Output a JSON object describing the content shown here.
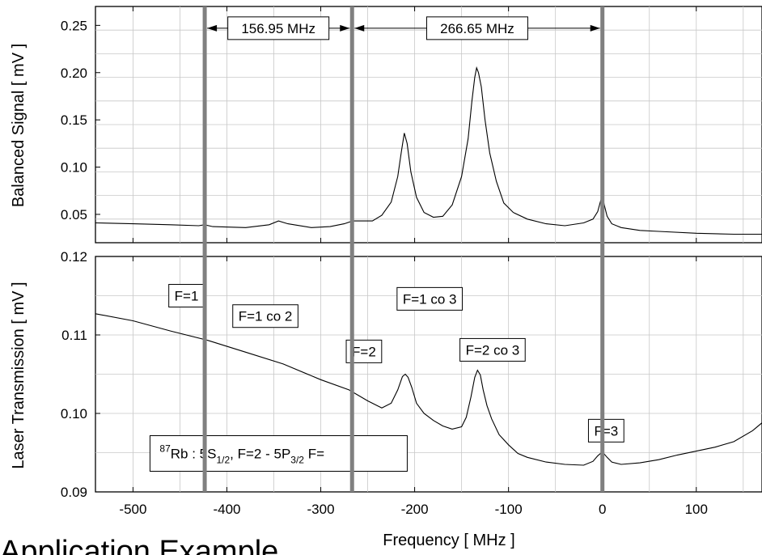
{
  "caption": "Application Example",
  "x_axis_label": "Frequency [ MHz ]",
  "chart_data": [
    {
      "type": "line",
      "panel": "top",
      "ylabel": "Balanced Signal [ mV ]",
      "xlim": [
        -540,
        170
      ],
      "ylim": [
        0.02,
        0.27
      ],
      "yticks": [
        0.05,
        0.1,
        0.15,
        0.2,
        0.25
      ],
      "ytick_labels": [
        "0.05",
        "0.10",
        "0.15",
        "0.20",
        "0.25"
      ],
      "grid": true,
      "line_color": "#000000",
      "markers": [
        {
          "x": -423.6,
          "color": "#808080"
        },
        {
          "x": -266.65,
          "color": "#808080"
        },
        {
          "x": 0,
          "color": "#808080"
        }
      ],
      "intervals": [
        {
          "x1": -423.6,
          "x2": -266.65,
          "y": 0.247,
          "label": "156.95 MHz"
        },
        {
          "x1": -266.65,
          "x2": 0,
          "y": 0.247,
          "label": "266.65 MHz"
        }
      ],
      "x": [
        -540,
        -500,
        -460,
        -430,
        -424,
        -415,
        -380,
        -355,
        -345,
        -335,
        -310,
        -290,
        -275,
        -266,
        -255,
        -245,
        -235,
        -225,
        -218,
        -214,
        -211,
        -208,
        -204,
        -198,
        -190,
        -180,
        -170,
        -160,
        -150,
        -143,
        -139,
        -136,
        -134,
        -132,
        -129,
        -125,
        -120,
        -113,
        -105,
        -95,
        -80,
        -60,
        -40,
        -20,
        -10,
        -5,
        -2,
        0,
        2,
        5,
        10,
        20,
        40,
        60,
        100,
        140,
        170
      ],
      "values": [
        0.041,
        0.04,
        0.039,
        0.038,
        0.039,
        0.037,
        0.036,
        0.039,
        0.043,
        0.04,
        0.036,
        0.037,
        0.04,
        0.043,
        0.043,
        0.043,
        0.049,
        0.063,
        0.09,
        0.117,
        0.136,
        0.125,
        0.095,
        0.068,
        0.052,
        0.047,
        0.048,
        0.06,
        0.09,
        0.13,
        0.17,
        0.195,
        0.205,
        0.2,
        0.185,
        0.15,
        0.115,
        0.085,
        0.062,
        0.052,
        0.045,
        0.04,
        0.038,
        0.041,
        0.045,
        0.053,
        0.064,
        0.07,
        0.06,
        0.048,
        0.04,
        0.036,
        0.033,
        0.032,
        0.03,
        0.029,
        0.029
      ]
    },
    {
      "type": "line",
      "panel": "bottom",
      "ylabel": "Laser Transmission [ mV ]",
      "xlabel": "Frequency [ MHz ]",
      "xlim": [
        -540,
        170
      ],
      "ylim": [
        0.09,
        0.12
      ],
      "xticks": [
        -500,
        -400,
        -300,
        -200,
        -100,
        0,
        100
      ],
      "xtick_labels": [
        "-500",
        "-400",
        "-300",
        "-200",
        "-100",
        "0",
        "100"
      ],
      "yticks": [
        0.09,
        0.1,
        0.11,
        0.12
      ],
      "ytick_labels": [
        "0.09",
        "0.10",
        "0.11",
        "0.12"
      ],
      "grid": true,
      "line_color": "#000000",
      "annotations": [
        {
          "text": "F=1",
          "x": -443,
          "y": 0.115
        },
        {
          "text": "F=1 co 2",
          "x": -359,
          "y": 0.1124
        },
        {
          "text": "F=1 co 3",
          "x": -184,
          "y": 0.1146
        },
        {
          "text": "F=2",
          "x": -254,
          "y": 0.1079
        },
        {
          "text": "F=2 co 3",
          "x": -117,
          "y": 0.1081
        },
        {
          "text": "F=3",
          "x": 4,
          "y": 0.0978
        }
      ],
      "info_box": {
        "mass_number": "87",
        "prefix": "Rb : 5S",
        "sub1": "1/2",
        "mid": ", F=2 - 5P",
        "sub2": "3/2",
        "suffix": " F=",
        "x": -475,
        "y": 0.095
      },
      "x": [
        -540,
        -500,
        -460,
        -420,
        -380,
        -340,
        -300,
        -270,
        -250,
        -235,
        -225,
        -218,
        -213,
        -210,
        -207,
        -203,
        -198,
        -190,
        -180,
        -170,
        -160,
        -150,
        -145,
        -140,
        -136,
        -133,
        -130,
        -127,
        -123,
        -118,
        -110,
        -100,
        -90,
        -80,
        -60,
        -40,
        -20,
        -10,
        -5,
        0,
        5,
        10,
        20,
        40,
        60,
        80,
        100,
        120,
        140,
        160,
        170
      ],
      "values": [
        0.1127,
        0.1118,
        0.1105,
        0.1093,
        0.1078,
        0.1063,
        0.1043,
        0.103,
        0.1016,
        0.1007,
        0.1013,
        0.103,
        0.1047,
        0.105,
        0.1046,
        0.1033,
        0.1013,
        0.1,
        0.0991,
        0.0984,
        0.098,
        0.0983,
        0.0995,
        0.1021,
        0.1046,
        0.1055,
        0.1049,
        0.103,
        0.101,
        0.0993,
        0.0973,
        0.096,
        0.0949,
        0.0944,
        0.0938,
        0.0935,
        0.0934,
        0.0939,
        0.0946,
        0.0951,
        0.0944,
        0.0938,
        0.0935,
        0.0937,
        0.0941,
        0.0947,
        0.0952,
        0.0957,
        0.0964,
        0.0978,
        0.0988
      ]
    }
  ]
}
